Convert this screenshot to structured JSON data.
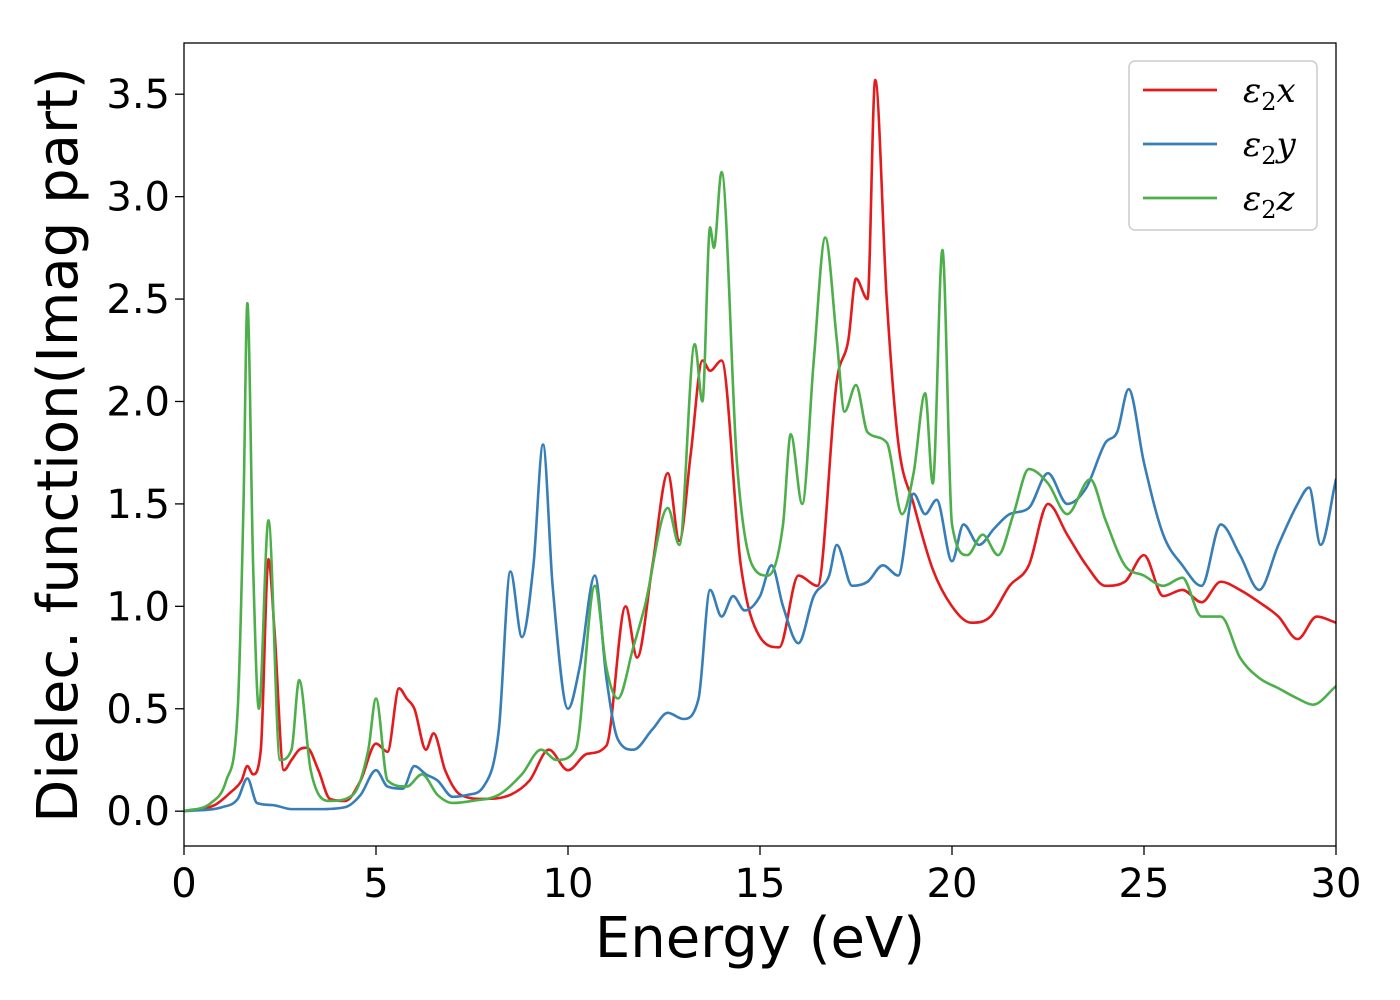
{
  "chart_data": {
    "type": "line",
    "xlabel": "Energy (eV)",
    "ylabel": "Dielec. function(Imag part)",
    "xlim": [
      0,
      30
    ],
    "ylim": [
      -0.17,
      3.75
    ],
    "xticks": [
      0,
      5,
      10,
      15,
      20,
      25,
      30
    ],
    "xtick_labels": [
      "0",
      "5",
      "10",
      "15",
      "20",
      "25",
      "30"
    ],
    "yticks": [
      0.0,
      0.5,
      1.0,
      1.5,
      2.0,
      2.5,
      3.0,
      3.5
    ],
    "ytick_labels": [
      "0.0",
      "0.5",
      "1.0",
      "1.5",
      "2.0",
      "2.5",
      "3.0",
      "3.5"
    ],
    "grid": false,
    "legend_position": "top-right",
    "series": [
      {
        "name": "ε₂x",
        "legend": {
          "base": "ε",
          "sub": "2",
          "suffix": "x"
        },
        "color": "#e41a1c",
        "x": [
          0,
          0.8,
          1.2,
          1.5,
          1.65,
          1.8,
          2.0,
          2.2,
          2.35,
          2.6,
          2.8,
          3.0,
          3.2,
          3.5,
          3.8,
          4.2,
          4.6,
          5.0,
          5.3,
          5.6,
          5.8,
          6.0,
          6.3,
          6.5,
          6.8,
          7.2,
          7.8,
          8.5,
          9.0,
          9.5,
          10.0,
          10.5,
          11.0,
          11.5,
          11.8,
          12.2,
          12.6,
          12.9,
          13.2,
          13.5,
          13.7,
          14.0,
          14.5,
          15.0,
          15.5,
          16.0,
          16.5,
          17.0,
          17.3,
          17.5,
          17.8,
          18.0,
          18.3,
          18.6,
          19.0,
          19.5,
          20.0,
          20.5,
          21.0,
          21.5,
          22.0,
          22.5,
          23.0,
          23.5,
          24.0,
          24.5,
          25.0,
          25.5,
          26.0,
          26.5,
          27.0,
          27.5,
          28.0,
          28.5,
          29.0,
          29.5,
          30.0
        ],
        "values": [
          0.0,
          0.03,
          0.09,
          0.15,
          0.22,
          0.18,
          0.3,
          1.23,
          0.9,
          0.2,
          0.25,
          0.3,
          0.31,
          0.2,
          0.06,
          0.05,
          0.15,
          0.33,
          0.29,
          0.6,
          0.55,
          0.5,
          0.3,
          0.38,
          0.2,
          0.08,
          0.06,
          0.08,
          0.15,
          0.3,
          0.2,
          0.28,
          0.32,
          1.0,
          0.75,
          1.2,
          1.65,
          1.32,
          1.75,
          2.2,
          2.15,
          2.2,
          1.2,
          0.85,
          0.8,
          1.15,
          1.1,
          2.1,
          2.3,
          2.6,
          2.5,
          3.57,
          2.5,
          1.8,
          1.5,
          1.18,
          1.0,
          0.92,
          0.95,
          1.1,
          1.2,
          1.5,
          1.35,
          1.2,
          1.1,
          1.12,
          1.25,
          1.05,
          1.08,
          1.02,
          1.12,
          1.08,
          1.02,
          0.95,
          0.84,
          0.95,
          0.92
        ]
      },
      {
        "name": "ε₂y",
        "legend": {
          "base": "ε",
          "sub": "2",
          "suffix": "y"
        },
        "color": "#377eb8",
        "x": [
          0,
          1.0,
          1.4,
          1.65,
          1.9,
          2.3,
          2.8,
          3.5,
          4.2,
          4.6,
          5.0,
          5.3,
          5.7,
          6.0,
          6.3,
          6.6,
          7.0,
          7.4,
          7.8,
          8.2,
          8.5,
          8.8,
          9.1,
          9.35,
          9.6,
          10.0,
          10.3,
          10.7,
          11.0,
          11.3,
          11.7,
          12.2,
          12.6,
          13.0,
          13.4,
          13.7,
          14.0,
          14.3,
          14.6,
          15.0,
          15.3,
          15.6,
          16.0,
          16.4,
          16.8,
          17.0,
          17.4,
          17.8,
          18.2,
          18.6,
          19.0,
          19.3,
          19.6,
          20.0,
          20.3,
          20.7,
          21.1,
          21.5,
          22.0,
          22.5,
          23.0,
          23.5,
          24.0,
          24.3,
          24.6,
          25.0,
          25.5,
          26.0,
          26.5,
          27.0,
          27.5,
          28.0,
          28.5,
          29.0,
          29.3,
          29.6,
          30.0
        ],
        "values": [
          0.0,
          0.02,
          0.06,
          0.16,
          0.04,
          0.03,
          0.01,
          0.01,
          0.02,
          0.08,
          0.2,
          0.12,
          0.11,
          0.22,
          0.18,
          0.15,
          0.07,
          0.08,
          0.12,
          0.4,
          1.17,
          0.85,
          1.2,
          1.79,
          1.1,
          0.5,
          0.7,
          1.15,
          0.65,
          0.35,
          0.3,
          0.4,
          0.48,
          0.45,
          0.55,
          1.08,
          0.95,
          1.05,
          0.98,
          1.05,
          1.2,
          1.0,
          0.82,
          1.05,
          1.15,
          1.3,
          1.1,
          1.12,
          1.2,
          1.15,
          1.55,
          1.45,
          1.52,
          1.22,
          1.4,
          1.3,
          1.38,
          1.45,
          1.48,
          1.65,
          1.5,
          1.58,
          1.8,
          1.85,
          2.06,
          1.7,
          1.35,
          1.2,
          1.1,
          1.4,
          1.25,
          1.08,
          1.3,
          1.5,
          1.58,
          1.3,
          1.62
        ]
      },
      {
        "name": "ε₂z",
        "legend": {
          "base": "ε",
          "sub": "2",
          "suffix": "z"
        },
        "color": "#4daf4a",
        "x": [
          0,
          0.7,
          1.1,
          1.4,
          1.55,
          1.65,
          1.8,
          1.95,
          2.2,
          2.5,
          2.8,
          3.0,
          3.3,
          3.8,
          4.4,
          4.8,
          5.0,
          5.3,
          5.8,
          6.2,
          6.6,
          7.0,
          7.5,
          8.2,
          8.8,
          9.3,
          9.7,
          10.2,
          10.7,
          11.0,
          11.3,
          11.7,
          12.0,
          12.6,
          12.9,
          13.3,
          13.5,
          13.7,
          13.8,
          14.0,
          14.4,
          14.8,
          15.2,
          15.6,
          15.8,
          16.1,
          16.4,
          16.7,
          17.0,
          17.2,
          17.5,
          17.8,
          18.3,
          18.7,
          19.0,
          19.3,
          19.5,
          19.75,
          20.0,
          20.4,
          20.8,
          21.2,
          21.6,
          22.0,
          22.5,
          23.0,
          23.6,
          24.0,
          24.5,
          25.0,
          25.5,
          26.0,
          26.5,
          27.0,
          27.5,
          28.0,
          28.5,
          29.0,
          29.4,
          30.0
        ],
        "values": [
          0.0,
          0.04,
          0.15,
          0.5,
          1.5,
          2.48,
          1.2,
          0.5,
          1.42,
          0.25,
          0.3,
          0.64,
          0.2,
          0.05,
          0.08,
          0.3,
          0.55,
          0.15,
          0.12,
          0.18,
          0.08,
          0.04,
          0.05,
          0.08,
          0.18,
          0.3,
          0.25,
          0.3,
          1.1,
          0.7,
          0.55,
          0.8,
          1.0,
          1.48,
          1.3,
          2.28,
          2.0,
          2.85,
          2.75,
          3.12,
          1.7,
          1.2,
          1.15,
          1.4,
          1.84,
          1.5,
          2.2,
          2.8,
          2.3,
          1.95,
          2.08,
          1.85,
          1.8,
          1.45,
          1.65,
          2.04,
          1.6,
          2.74,
          1.4,
          1.25,
          1.35,
          1.25,
          1.45,
          1.67,
          1.6,
          1.45,
          1.62,
          1.42,
          1.2,
          1.15,
          1.1,
          1.14,
          0.95,
          0.95,
          0.75,
          0.65,
          0.6,
          0.55,
          0.52,
          0.61
        ]
      }
    ]
  }
}
